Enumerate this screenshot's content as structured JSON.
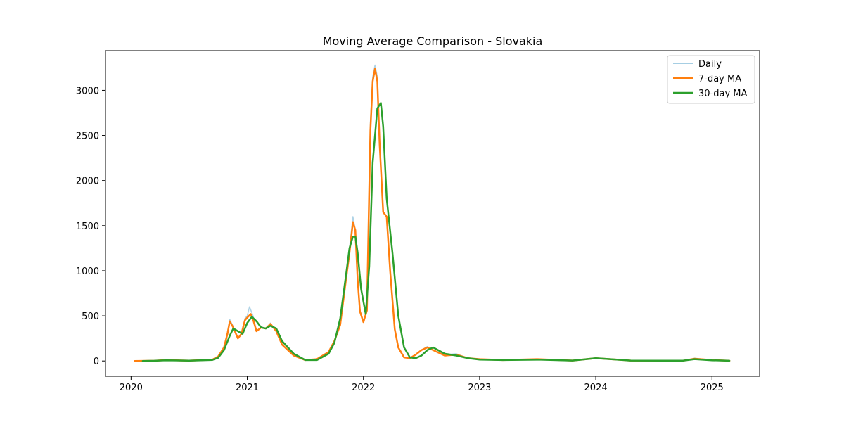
{
  "chart_data": {
    "type": "line",
    "title": "Moving Average Comparison - Slovakia",
    "xlabel": "",
    "ylabel": "",
    "xlim": [
      2019.78,
      2025.41
    ],
    "ylim": [
      -170,
      3440
    ],
    "x_ticks": [
      2020,
      2021,
      2022,
      2023,
      2024,
      2025
    ],
    "x_tick_labels": [
      "2020",
      "2021",
      "2022",
      "2023",
      "2024",
      "2025"
    ],
    "y_ticks": [
      0,
      500,
      1000,
      1500,
      2000,
      2500,
      3000
    ],
    "y_tick_labels": [
      "0",
      "500",
      "1000",
      "1500",
      "2000",
      "2500",
      "3000"
    ],
    "grid": false,
    "legend_position": "top-right",
    "series": [
      {
        "name": "Daily",
        "color": "#a6cee3",
        "x": [
          2020.03,
          2020.2,
          2020.3,
          2020.5,
          2020.7,
          2020.75,
          2020.8,
          2020.83,
          2020.85,
          2020.88,
          2020.92,
          2020.95,
          2020.98,
          2021.0,
          2021.02,
          2021.05,
          2021.08,
          2021.12,
          2021.16,
          2021.2,
          2021.25,
          2021.3,
          2021.4,
          2021.5,
          2021.6,
          2021.7,
          2021.75,
          2021.8,
          2021.85,
          2021.88,
          2021.91,
          2021.93,
          2021.95,
          2021.97,
          2022.0,
          2022.03,
          2022.06,
          2022.08,
          2022.1,
          2022.12,
          2022.14,
          2022.17,
          2022.2,
          2022.23,
          2022.27,
          2022.3,
          2022.35,
          2022.4,
          2022.45,
          2022.5,
          2022.55,
          2022.6,
          2022.7,
          2022.8,
          2022.9,
          2023.0,
          2023.2,
          2023.5,
          2023.8,
          2024.0,
          2024.3,
          2024.6,
          2024.75,
          2024.85,
          2025.0,
          2025.15
        ],
        "values": [
          0,
          2,
          10,
          3,
          15,
          50,
          160,
          320,
          460,
          380,
          250,
          300,
          470,
          500,
          600,
          500,
          330,
          380,
          360,
          420,
          330,
          180,
          60,
          10,
          20,
          100,
          220,
          420,
          950,
          1250,
          1600,
          1450,
          900,
          550,
          430,
          560,
          2650,
          3150,
          3280,
          3150,
          2400,
          1650,
          1600,
          1000,
          350,
          150,
          40,
          30,
          70,
          120,
          160,
          120,
          70,
          80,
          30,
          20,
          10,
          20,
          5,
          30,
          5,
          3,
          3,
          30,
          10,
          2
        ]
      },
      {
        "name": "7-day MA",
        "color": "#ff7f0e",
        "x": [
          2020.03,
          2020.2,
          2020.3,
          2020.5,
          2020.7,
          2020.75,
          2020.8,
          2020.83,
          2020.85,
          2020.88,
          2020.92,
          2020.95,
          2020.98,
          2021.0,
          2021.03,
          2021.05,
          2021.08,
          2021.12,
          2021.16,
          2021.2,
          2021.25,
          2021.3,
          2021.4,
          2021.5,
          2021.6,
          2021.7,
          2021.75,
          2021.8,
          2021.85,
          2021.88,
          2021.91,
          2021.93,
          2021.95,
          2021.97,
          2022.0,
          2022.03,
          2022.06,
          2022.08,
          2022.1,
          2022.12,
          2022.14,
          2022.17,
          2022.2,
          2022.23,
          2022.27,
          2022.3,
          2022.35,
          2022.4,
          2022.45,
          2022.5,
          2022.55,
          2022.6,
          2022.7,
          2022.8,
          2022.9,
          2023.0,
          2023.2,
          2023.5,
          2023.8,
          2024.0,
          2024.3,
          2024.6,
          2024.75,
          2024.85,
          2025.0,
          2025.15
        ],
        "values": [
          0,
          2,
          10,
          3,
          15,
          50,
          150,
          300,
          440,
          370,
          250,
          300,
          450,
          480,
          520,
          460,
          330,
          370,
          360,
          410,
          330,
          180,
          60,
          10,
          20,
          100,
          220,
          400,
          900,
          1200,
          1540,
          1450,
          900,
          550,
          430,
          560,
          2550,
          3100,
          3240,
          3100,
          2400,
          1650,
          1600,
          1000,
          350,
          150,
          40,
          30,
          70,
          120,
          150,
          120,
          60,
          70,
          30,
          20,
          10,
          20,
          5,
          30,
          5,
          3,
          3,
          25,
          10,
          2
        ]
      },
      {
        "name": "30-day MA",
        "color": "#2ca02c",
        "x": [
          2020.1,
          2020.2,
          2020.3,
          2020.5,
          2020.7,
          2020.75,
          2020.8,
          2020.85,
          2020.88,
          2020.92,
          2020.96,
          2021.0,
          2021.04,
          2021.08,
          2021.12,
          2021.16,
          2021.2,
          2021.25,
          2021.3,
          2021.4,
          2021.5,
          2021.6,
          2021.7,
          2021.75,
          2021.8,
          2021.85,
          2021.88,
          2021.91,
          2021.93,
          2021.95,
          2021.98,
          2022.02,
          2022.05,
          2022.08,
          2022.12,
          2022.15,
          2022.17,
          2022.2,
          2022.25,
          2022.3,
          2022.35,
          2022.4,
          2022.45,
          2022.5,
          2022.55,
          2022.6,
          2022.7,
          2022.8,
          2022.9,
          2023.0,
          2023.2,
          2023.5,
          2023.8,
          2024.0,
          2024.3,
          2024.6,
          2024.75,
          2024.85,
          2025.0,
          2025.15
        ],
        "values": [
          0,
          2,
          8,
          3,
          12,
          35,
          120,
          280,
          360,
          330,
          300,
          420,
          490,
          440,
          370,
          360,
          390,
          360,
          220,
          80,
          10,
          10,
          80,
          200,
          470,
          950,
          1250,
          1380,
          1380,
          1200,
          800,
          520,
          1050,
          2200,
          2800,
          2860,
          2600,
          1800,
          1200,
          500,
          150,
          40,
          30,
          60,
          120,
          150,
          80,
          60,
          30,
          15,
          10,
          15,
          5,
          30,
          5,
          3,
          3,
          20,
          8,
          2
        ]
      }
    ]
  }
}
